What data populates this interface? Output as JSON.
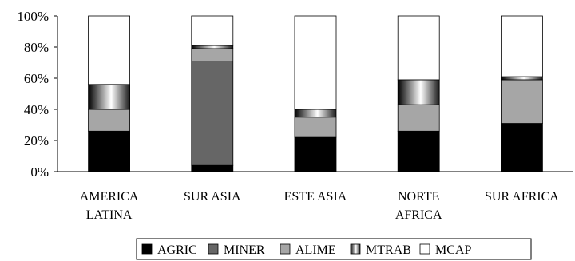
{
  "chart_data": {
    "type": "bar",
    "stacked": true,
    "percent": true,
    "categories": [
      [
        "AMERICA",
        "LATINA"
      ],
      [
        "SUR ASIA"
      ],
      [
        "ESTE ASIA"
      ],
      [
        "NORTE",
        "AFRICA"
      ],
      [
        "SUR AFRICA"
      ]
    ],
    "series": [
      {
        "name": "AGRIC",
        "values": [
          26,
          4,
          22,
          26,
          31
        ],
        "fill": "#000000"
      },
      {
        "name": "MINER",
        "values": [
          0,
          67,
          0,
          0,
          0
        ],
        "fill": "#666666"
      },
      {
        "name": "ALIME",
        "values": [
          14,
          8,
          13,
          17,
          28
        ],
        "fill": "#a6a6a6"
      },
      {
        "name": "MTRAB",
        "values": [
          16,
          2,
          5,
          16,
          2
        ],
        "fill": "gradient"
      },
      {
        "name": "MCAP",
        "values": [
          44,
          19,
          60,
          41,
          39
        ],
        "fill": "#ffffff"
      }
    ],
    "ylim": [
      0,
      100
    ],
    "yticks": [
      "0%",
      "20%",
      "40%",
      "60%",
      "80%",
      "100%"
    ],
    "grid": false,
    "legend_position": "bottom"
  }
}
